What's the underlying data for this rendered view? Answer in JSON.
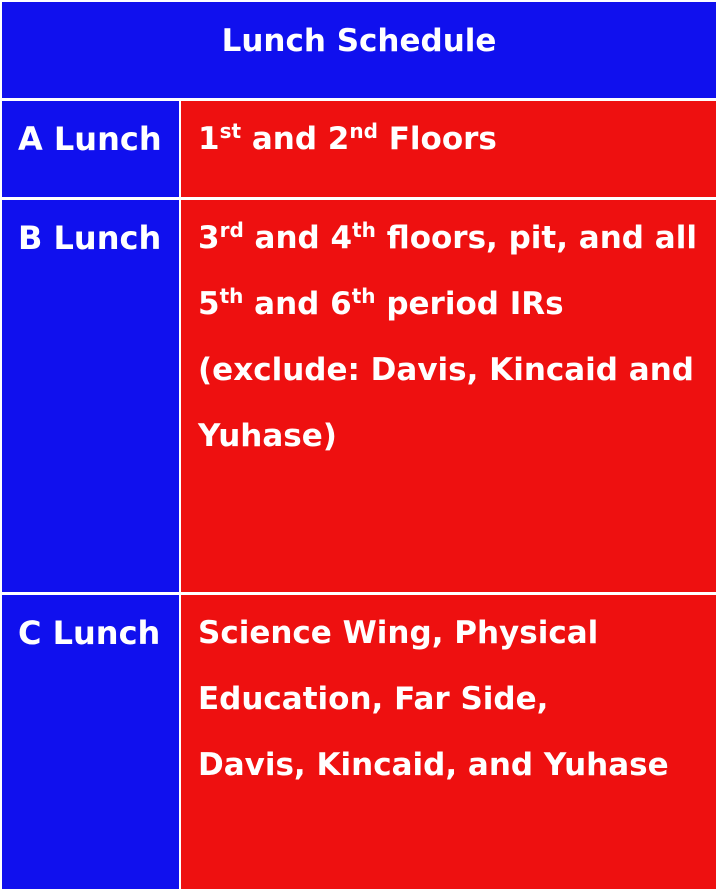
{
  "schedule": {
    "title": "Lunch Schedule",
    "colors": {
      "header_bg": "#1010ee",
      "label_bg": "#1010ee",
      "detail_bg": "#ee1010",
      "text": "#ffffff",
      "grid": "#ffffff"
    },
    "rows": [
      {
        "label": "A Lunch",
        "lines": [
          {
            "n1": "1",
            "s1": "st",
            "m": " and 2",
            "s2": "nd",
            "e": " Floors"
          }
        ]
      },
      {
        "label": "B Lunch",
        "lines": [
          {
            "n1": "3",
            "s1": "rd",
            "m": " and 4",
            "s2": "th",
            "e": " floors, pit, and all"
          },
          {
            "n1": "5",
            "s1": "th",
            "m": " and 6",
            "s2": "th",
            "e": " period IRs"
          },
          "(exclude: Davis, Kincaid and",
          "Yuhase)"
        ]
      },
      {
        "label": "C Lunch",
        "lines": [
          "Science Wing, Physical",
          "Education, Far Side,",
          "Davis, Kincaid, and Yuhase"
        ]
      }
    ]
  }
}
